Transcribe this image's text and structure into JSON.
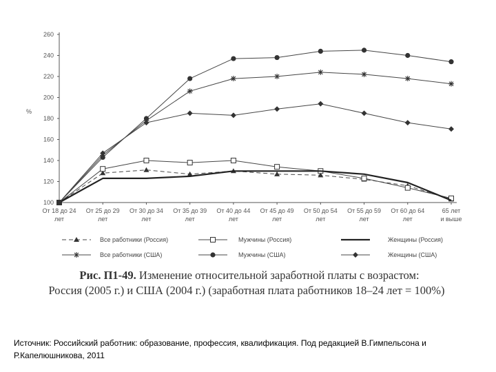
{
  "chart_data": {
    "type": "line",
    "ylabel": "%",
    "ylim": [
      100,
      250
    ],
    "yticks": [
      100,
      120,
      140,
      160,
      180,
      200,
      220,
      240,
      260
    ],
    "ytick_labels": [
      "100",
      "120",
      "140",
      "160",
      "180",
      "200",
      "220",
      "240",
      "260"
    ],
    "grid": false,
    "legend_position": "bottom",
    "categories": [
      [
        "От 18 до 24",
        "лет"
      ],
      [
        "От 25 до 29",
        "лет"
      ],
      [
        "От 30 до 34",
        "лет"
      ],
      [
        "От 35 до 39",
        "лет"
      ],
      [
        "От 40 до 44",
        "лет"
      ],
      [
        "От 45 до 49",
        "лет"
      ],
      [
        "От 50 до 54",
        "лет"
      ],
      [
        "От 55 до 59",
        "лет"
      ],
      [
        "От 60 до 64",
        "лет"
      ],
      [
        "65 лет",
        "и выше"
      ]
    ],
    "series": [
      {
        "name": "Все работники (Россия)",
        "marker": "triangle",
        "dash": "6,4",
        "width": 1,
        "color": "#444444",
        "values": [
          100,
          128,
          131,
          127,
          130,
          127,
          126,
          122,
          116,
          103
        ]
      },
      {
        "name": "Мужчины (Россия)",
        "marker": "square",
        "dash": "",
        "width": 1,
        "color": "#444444",
        "values": [
          100,
          132,
          140,
          138,
          140,
          134,
          130,
          123,
          114,
          104
        ]
      },
      {
        "name": "Женщины (Россия)",
        "marker": "none",
        "dash": "",
        "width": 2.2,
        "color": "#222222",
        "values": [
          100,
          123,
          123,
          125,
          130,
          130,
          130,
          127,
          119,
          102
        ]
      },
      {
        "name": "Все работники (США)",
        "marker": "star",
        "dash": "",
        "width": 1,
        "color": "#444444",
        "values": [
          100,
          145,
          178,
          206,
          218,
          220,
          224,
          222,
          218,
          213
        ]
      },
      {
        "name": "Мужчины (США)",
        "marker": "circle",
        "dash": "",
        "width": 1,
        "color": "#444444",
        "values": [
          100,
          143,
          180,
          218,
          237,
          238,
          244,
          245,
          240,
          234
        ]
      },
      {
        "name": "Женщины (США)",
        "marker": "diamond",
        "dash": "",
        "width": 1,
        "color": "#444444",
        "values": [
          100,
          147,
          176,
          185,
          183,
          189,
          194,
          185,
          176,
          170
        ]
      }
    ]
  },
  "caption": {
    "bold": "Рис. П1-49.",
    "line1": " Изменение относительной заработной платы с возрастом:",
    "line2": "Россия (2005 г.) и США (2004 г.) (заработная плата работников 18–24 лет = 100%)"
  },
  "source_text": "Источник: Российский работник: образование, профессия, квалификация. Под редакцией В.Гимпельсона и Р.Капелюшникова, 2011"
}
